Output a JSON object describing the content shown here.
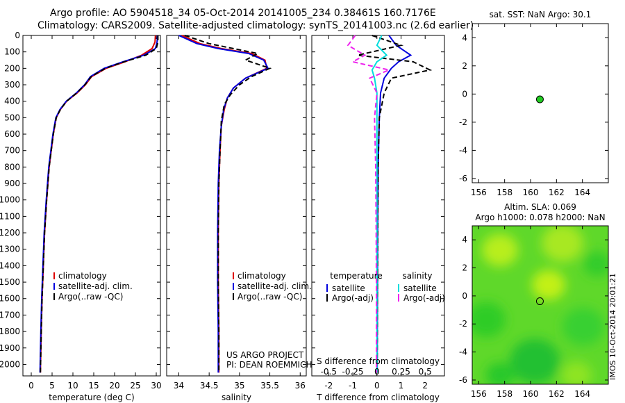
{
  "header": {
    "line1": "Argo profile: AO 5904518_34 05-Oct-2014 20141005_234 0.38461S 160.7176E",
    "line2": "Climatology: CARS2009. Satellite-adjusted climatology: synTS_20141003.nc (2.6d earlier)"
  },
  "chart_data": [
    {
      "type": "line",
      "panel": "temperature",
      "xlabel": "temperature (deg C)",
      "ylabel": "",
      "xlim": [
        -2,
        31
      ],
      "ylim": [
        2070,
        0
      ],
      "y_reversed": true,
      "xticks": [
        0,
        5,
        10,
        15,
        20,
        25,
        30
      ],
      "yticks": [
        0,
        100,
        200,
        300,
        400,
        500,
        600,
        700,
        800,
        900,
        1000,
        1100,
        1200,
        1300,
        1400,
        1500,
        1600,
        1700,
        1800,
        1900,
        2000
      ],
      "legend": [
        "climatology",
        "satellite-adj. clim.",
        "Argo(..raw -QC)"
      ],
      "series": [
        {
          "name": "climatology",
          "color": "#dd0000",
          "x": [
            29.8,
            29.7,
            29.0,
            26.5,
            22.5,
            18.0,
            14.5,
            13.0,
            11.0,
            8.5,
            7.0,
            6.0,
            5.3,
            4.8,
            4.3,
            3.7,
            3.2,
            2.9,
            2.6,
            2.4,
            2.2
          ],
          "y": [
            0,
            40,
            80,
            120,
            160,
            200,
            250,
            300,
            350,
            400,
            450,
            500,
            600,
            700,
            800,
            1000,
            1200,
            1400,
            1600,
            1800,
            2050
          ]
        },
        {
          "name": "satellite-adj. clim.",
          "color": "#0000dd",
          "x": [
            30.3,
            30.2,
            29.8,
            27.0,
            22.0,
            17.5,
            14.2,
            12.8,
            10.8,
            8.4,
            6.9,
            5.9,
            5.2,
            4.7,
            4.2,
            3.6,
            3.1,
            2.8,
            2.5,
            2.3,
            2.1
          ],
          "y": [
            0,
            40,
            80,
            120,
            160,
            200,
            250,
            300,
            350,
            400,
            450,
            500,
            600,
            700,
            800,
            1000,
            1200,
            1400,
            1600,
            1800,
            2050
          ]
        },
        {
          "name": "Argo(..raw -QC)",
          "color": "#000000",
          "x": [
            30.4,
            30.4,
            30.0,
            27.5,
            22.3,
            17.8,
            14.4,
            12.9,
            10.9,
            8.5,
            7.0,
            6.0,
            5.3,
            4.8,
            4.3,
            3.7,
            3.2,
            2.9,
            2.6,
            2.4,
            2.2
          ],
          "y": [
            0,
            40,
            80,
            120,
            160,
            200,
            250,
            300,
            350,
            400,
            450,
            500,
            600,
            700,
            800,
            1000,
            1200,
            1400,
            1600,
            1800,
            2050
          ]
        }
      ]
    },
    {
      "type": "line",
      "panel": "salinity",
      "xlabel": "salinity",
      "xlim": [
        33.8,
        36.1
      ],
      "ylim": [
        2070,
        0
      ],
      "xticks": [
        34,
        34.5,
        35,
        35.5,
        36
      ],
      "legend": [
        "climatology",
        "satellite-adj. clim.",
        "Argo(..raw -QC)"
      ],
      "annotation": [
        "US ARGO PROJECT",
        "PI: DEAN ROEMMICH"
      ],
      "series": [
        {
          "name": "climatology",
          "color": "#dd0000",
          "x": [
            34.05,
            34.35,
            34.7,
            35.2,
            35.42,
            35.45,
            35.1,
            34.9,
            34.8,
            34.75,
            34.7,
            34.68,
            34.66,
            34.65,
            34.65,
            34.66,
            34.66
          ],
          "y": [
            0,
            50,
            80,
            110,
            150,
            200,
            260,
            320,
            380,
            450,
            550,
            700,
            900,
            1200,
            1500,
            1800,
            2050
          ]
        },
        {
          "name": "satellite-adj. clim.",
          "color": "#0000dd",
          "x": [
            34.0,
            34.3,
            34.65,
            35.15,
            35.4,
            35.47,
            35.1,
            34.9,
            34.8,
            34.74,
            34.7,
            34.67,
            34.65,
            34.64,
            34.64,
            34.65,
            34.65
          ],
          "y": [
            0,
            50,
            80,
            110,
            150,
            200,
            260,
            320,
            380,
            450,
            550,
            700,
            900,
            1200,
            1500,
            1800,
            2050
          ]
        },
        {
          "name": "Argo(..raw -QC)",
          "color": "#000000",
          "x": [
            34.1,
            34.5,
            34.9,
            35.3,
            35.1,
            35.5,
            35.2,
            35.0,
            34.85,
            34.75,
            34.7,
            34.68,
            34.66,
            34.65,
            34.65,
            34.66,
            34.66
          ],
          "y": [
            0,
            50,
            80,
            110,
            150,
            200,
            250,
            300,
            360,
            420,
            520,
            700,
            900,
            1200,
            1500,
            1800,
            2050
          ]
        }
      ]
    },
    {
      "type": "line",
      "panel": "difference",
      "xlabel": "T difference from climatology",
      "xlabel2": "S difference from climatology",
      "xlim": [
        -2.7,
        2.8
      ],
      "ylim": [
        2070,
        0
      ],
      "xticks": [
        -2,
        -1,
        0,
        1,
        2
      ],
      "xticks2": [
        "-0.5",
        "-0.25",
        "0",
        "0.25",
        "0.5"
      ],
      "xticks2_pos": [
        -2,
        -1,
        0,
        1,
        2
      ],
      "legend_headers": [
        "temperature",
        "salinity"
      ],
      "legend": [
        "satellite",
        "Argo(-adj)",
        "satellite",
        "Argo(-adj)"
      ],
      "series": [
        {
          "name": "satellite",
          "color": "#0000dd",
          "x": [
            0.5,
            0.8,
            1.4,
            0.9,
            0.6,
            0.3,
            0.15,
            0.1,
            0.05,
            0.03,
            0.02,
            0.01
          ],
          "y": [
            0,
            60,
            120,
            160,
            200,
            260,
            350,
            500,
            800,
            1200,
            1600,
            2050
          ]
        },
        {
          "name": "Argo(-adj)",
          "color": "#000000",
          "x": [
            -0.2,
            1.0,
            -0.8,
            1.5,
            2.2,
            0.6,
            0.3,
            0.1,
            0.05,
            0.03,
            0.02,
            0.01
          ],
          "y": [
            0,
            60,
            120,
            160,
            210,
            260,
            350,
            500,
            800,
            1200,
            1600,
            2050
          ]
        },
        {
          "name": "satellite",
          "color": "#00dddd",
          "x": [
            0.2,
            0.0,
            0.4,
            0.0,
            -0.2,
            -0.1,
            0.0,
            0.0,
            0.0,
            0.0,
            0.0,
            0.0
          ],
          "y": [
            0,
            60,
            120,
            160,
            210,
            260,
            350,
            500,
            800,
            1200,
            1600,
            2050
          ]
        },
        {
          "name": "Argo(-adj)",
          "color": "#ee22ee",
          "x": [
            -0.9,
            -1.2,
            -0.5,
            -1.0,
            0.5,
            -0.3,
            0.0,
            -0.1,
            -0.05,
            -0.03,
            -0.02,
            -0.02
          ],
          "y": [
            0,
            60,
            120,
            160,
            210,
            260,
            350,
            500,
            800,
            1200,
            1600,
            2050
          ]
        }
      ]
    },
    {
      "type": "scatter",
      "panel": "sat-sst-map",
      "title": "sat. SST: NaN Argo: 30.1",
      "xlim": [
        155.5,
        166
      ],
      "ylim": [
        -6.3,
        5
      ],
      "xticks": [
        156,
        158,
        160,
        162,
        164
      ],
      "yticks": [
        -6,
        -4,
        -2,
        0,
        2,
        4
      ],
      "points": [
        {
          "x": 160.72,
          "y": -0.38,
          "color": "#22cc22"
        }
      ]
    },
    {
      "type": "heatmap",
      "panel": "altim-sla-map",
      "title1": "Altim. SLA: 0.069",
      "title2": "Argo h1000: 0.078 h2000: NaN",
      "xlim": [
        155.5,
        166
      ],
      "ylim": [
        -6.3,
        5
      ],
      "xticks": [
        156,
        158,
        160,
        162,
        164
      ],
      "yticks": [
        -6,
        -4,
        -2,
        0,
        2,
        4
      ],
      "points": [
        {
          "x": 160.72,
          "y": -0.38
        }
      ]
    }
  ],
  "footer": {
    "stamp": "IMOS 10-Oct-2014 20:01:21"
  }
}
